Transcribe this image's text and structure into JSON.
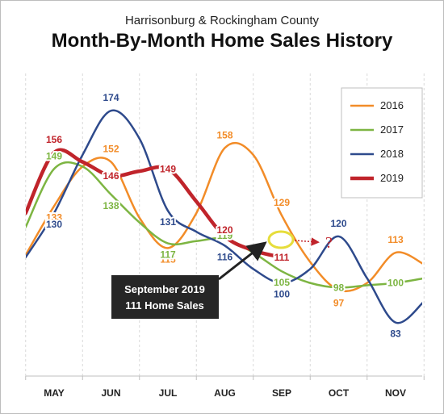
{
  "subtitle": "Harrisonburg & Rockingham County",
  "title": "Month-By-Month Home Sales History",
  "chart_data": {
    "type": "line",
    "categories": [
      "MAY",
      "JUN",
      "JUL",
      "AUG",
      "SEP",
      "OCT",
      "NOV"
    ],
    "x_positions": [
      0,
      1,
      2,
      3,
      4,
      5,
      6
    ],
    "ylim": [
      60,
      190
    ],
    "grid": "vertical dashed",
    "legend": "top-right",
    "series": [
      {
        "name": "2016",
        "color": "#F28C28",
        "x": [
          -0.5,
          0,
          0.5,
          1,
          1.5,
          2,
          2.5,
          3,
          3.5,
          4,
          4.5,
          5,
          5.5,
          6,
          6.5
        ],
        "values": [
          112,
          133,
          150,
          152,
          128,
          115,
          130,
          158,
          155,
          129,
          109,
          97,
          100,
          113,
          108
        ],
        "labels": [
          null,
          133,
          null,
          152,
          null,
          115,
          null,
          158,
          null,
          129,
          null,
          97,
          null,
          113,
          null
        ]
      },
      {
        "name": "2017",
        "color": "#7DB542",
        "x": [
          -0.5,
          0,
          0.5,
          1,
          1.5,
          2,
          2.5,
          3,
          3.5,
          4,
          4.5,
          5,
          5.5,
          6,
          6.5
        ],
        "values": [
          124,
          149,
          150,
          138,
          126,
          117,
          118,
          119,
          113,
          105,
          100,
          98,
          99,
          100,
          102
        ],
        "labels": [
          null,
          149,
          null,
          138,
          null,
          117,
          null,
          119,
          null,
          105,
          null,
          98,
          null,
          100,
          null
        ]
      },
      {
        "name": "2018",
        "color": "#2E4A8C",
        "x": [
          -0.5,
          0,
          0.5,
          1,
          1.5,
          2,
          2.5,
          3,
          3.5,
          4,
          4.5,
          5,
          5.5,
          6,
          6.5
        ],
        "values": [
          111,
          130,
          155,
          174,
          162,
          131,
          122,
          116,
          106,
          100,
          106,
          120,
          102,
          83,
          92
        ],
        "labels": [
          null,
          130,
          null,
          174,
          null,
          131,
          null,
          116,
          null,
          100,
          null,
          120,
          null,
          83,
          null
        ]
      },
      {
        "name": "2019",
        "color": "#C0242B",
        "x": [
          -0.5,
          0,
          0.5,
          1,
          1.5,
          2,
          2.5,
          3,
          3.5,
          4
        ],
        "values": [
          130,
          156,
          152,
          146,
          148,
          149,
          135,
          120,
          114,
          111
        ],
        "labels": [
          null,
          156,
          null,
          146,
          null,
          149,
          null,
          120,
          null,
          111
        ]
      }
    ],
    "annotations": {
      "callout_line1": "September 2019",
      "callout_line2": "111 Home Sales",
      "callout_value": 111,
      "next_month_label": "?",
      "next_month_value": 111
    }
  }
}
